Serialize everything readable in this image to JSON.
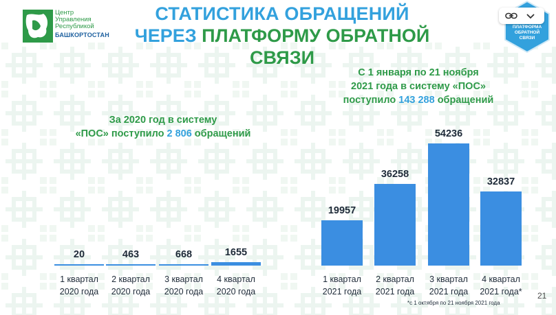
{
  "logo": {
    "line1": "Центр",
    "line2": "Управления",
    "line3": "Республикой",
    "region": "БАШКОРТОСТАН"
  },
  "title": {
    "line1": "СТАТИСТИКА ОБРАЩЕНИЙ",
    "line2_part1": "ЧЕРЕЗ ",
    "line2_part2": "ПЛАТФОРМУ ОБРАТНОЙ СВЯЗИ"
  },
  "badge": {
    "line1": "ПЛАТФОРМА",
    "line2": "ОБРАТНОЙ",
    "line3": "СВЯЗИ"
  },
  "summary_2020": {
    "line1": "За 2020 год в систему",
    "line2_pre": "«ПОС» поступило ",
    "number": "2 806",
    "line2_post": " обращений"
  },
  "summary_2021": {
    "line1": "С 1 января по 21 ноября",
    "line2": "2021 года в систему «ПОС»",
    "line3_pre": "поступило ",
    "number": "143 288",
    "line3_post": " обращений"
  },
  "colors": {
    "bar": "#3b8ee1",
    "title_blue": "#33a1dd",
    "title_green": "#2e9a48"
  },
  "chart_data": [
    {
      "type": "bar",
      "categories": [
        "1 квартал 2020 года",
        "2 квартал 2020 года",
        "3 квартал 2020 года",
        "4 квартал 2020 года"
      ],
      "category_lines": [
        [
          "1 квартал",
          "2020 года"
        ],
        [
          "2 квартал",
          "2020 года"
        ],
        [
          "3 квартал",
          "2020 года"
        ],
        [
          "4 квартал",
          "2020 года"
        ]
      ],
      "values": [
        20,
        463,
        668,
        1655
      ],
      "value_labels": [
        "20",
        "463",
        "668",
        "1655"
      ],
      "title": "",
      "xlabel": "",
      "ylabel": "",
      "ylim": [
        0,
        55000
      ],
      "grid": false
    },
    {
      "type": "bar",
      "categories": [
        "1 квартал 2021 года",
        "2 квартал 2021 года",
        "3 квартал 2021 года",
        "4 квартал 2021 года*"
      ],
      "category_lines": [
        [
          "1 квартал",
          "2021 года"
        ],
        [
          "2 квартал",
          "2021 года"
        ],
        [
          "3 квартал",
          "2021 года"
        ],
        [
          "4 квартал",
          "2021 года*"
        ]
      ],
      "values": [
        19957,
        36258,
        54236,
        32837
      ],
      "value_labels": [
        "19957",
        "36258",
        "54236",
        "32837"
      ],
      "title": "",
      "xlabel": "",
      "ylabel": "",
      "ylim": [
        0,
        55000
      ],
      "grid": false
    }
  ],
  "footnote": "*с 1 октября по 21 ноября 2021 года",
  "page_number": "21"
}
